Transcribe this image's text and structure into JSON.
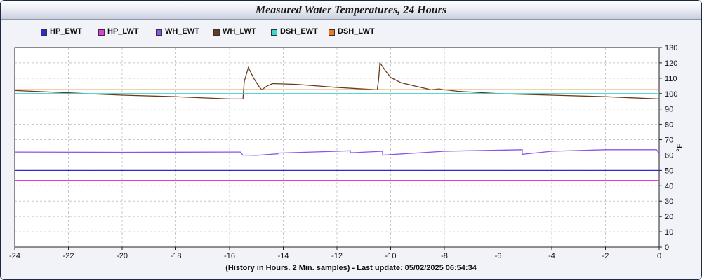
{
  "chart_data": {
    "type": "line",
    "title": "Measured Water Temperatures, 24 Hours",
    "xlabel": "(History in Hours. 2 Min. samples) - Last update: 05/02/2025 06:54:34",
    "ylabel": "°F",
    "xlim": [
      -24,
      0
    ],
    "ylim": [
      0,
      130
    ],
    "xticks": [
      -24,
      -22,
      -20,
      -18,
      -16,
      -14,
      -12,
      -10,
      -8,
      -6,
      -4,
      -2,
      0
    ],
    "yticks": [
      0,
      10,
      20,
      30,
      40,
      50,
      60,
      70,
      80,
      90,
      100,
      110,
      120,
      130
    ],
    "grid": true,
    "legend_position": "top-left",
    "series": [
      {
        "name": "HP_EWT",
        "color": "#2b2bd6",
        "x": [
          -24,
          0
        ],
        "y": [
          50,
          50
        ]
      },
      {
        "name": "HP_LWT",
        "color": "#e23ce2",
        "x": [
          -24,
          0
        ],
        "y": [
          43.5,
          43.5
        ]
      },
      {
        "name": "WH_EWT",
        "color": "#8a55e8",
        "x": [
          -24,
          -20,
          -16,
          -15.6,
          -15.5,
          -15.0,
          -14.2,
          -14.2,
          -12,
          -11.5,
          -11.5,
          -10.5,
          -10.3,
          -10.3,
          -8,
          -5.1,
          -5.1,
          -4,
          -2,
          -0.1,
          0
        ],
        "y": [
          62,
          61.8,
          62,
          62,
          60,
          59.8,
          60.8,
          61.3,
          62.5,
          62.8,
          61.5,
          62.3,
          62.5,
          60,
          62.5,
          63.5,
          60.5,
          62.5,
          63.5,
          63.5,
          61
        ]
      },
      {
        "name": "WH_LWT",
        "color": "#6b3a1c",
        "x": [
          -24,
          -22,
          -20,
          -18,
          -16,
          -15.5,
          -15.45,
          -15.3,
          -15.1,
          -14.9,
          -14.8,
          -14.6,
          -14.4,
          -13.5,
          -12,
          -10.5,
          -10.45,
          -10.4,
          -10.2,
          -10,
          -9.6,
          -9.0,
          -8.5,
          -8.2,
          -8.0,
          -7.5,
          -6,
          -4,
          -2,
          0
        ],
        "y": [
          102,
          100.5,
          99,
          98,
          96.5,
          96.5,
          108,
          117,
          110,
          104.5,
          102.5,
          105,
          106.5,
          106,
          104,
          102.5,
          109,
          120,
          115,
          110.5,
          107,
          104.5,
          102.5,
          103,
          102.5,
          101.5,
          100,
          99,
          98,
          96.5
        ]
      },
      {
        "name": "DSH_EWT",
        "color": "#3ed6d2",
        "x": [
          -24,
          0
        ],
        "y": [
          100,
          100
        ]
      },
      {
        "name": "DSH_LWT",
        "color": "#ee7a1c",
        "x": [
          -24,
          0
        ],
        "y": [
          102.5,
          102.5
        ]
      }
    ]
  }
}
